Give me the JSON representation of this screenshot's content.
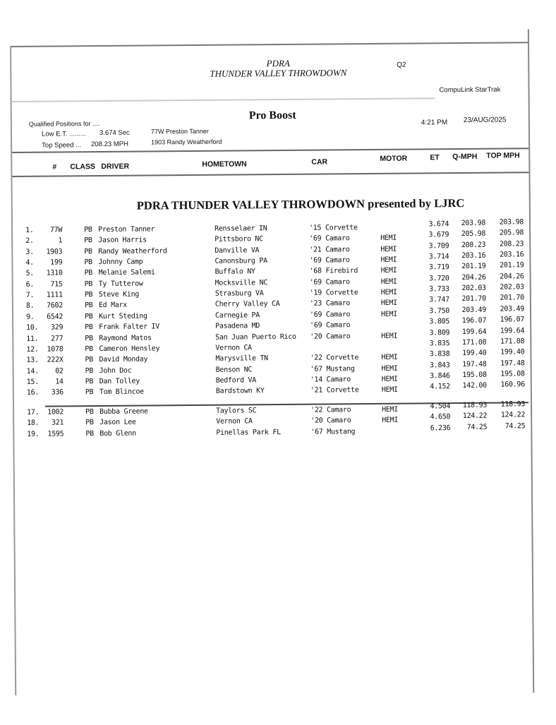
{
  "header": {
    "code": "Q2",
    "org": "PDRA",
    "event": "THUNDER VALLEY THROWDOWN",
    "system": "CompuLink StarTrak",
    "class_title": "Pro Boost",
    "qualified_label": "Qualified Positions for ....",
    "low_et_label": "Low E.T. .........",
    "low_et_value": "3.674 Sec",
    "low_et_holder": "77W  Preston Tanner",
    "top_speed_label": "Top Speed ...",
    "top_speed_value": "208.23 MPH",
    "top_speed_holder": "1903  Randy Weatherford",
    "time": "4:21 PM",
    "date": "23/AUG/2025"
  },
  "columns": [
    "#",
    "CLASS",
    "DRIVER",
    "HOMETOWN",
    "CAR",
    "MOTOR",
    "ET",
    "Q-MPH",
    "TOP MPH"
  ],
  "subtitle": "PDRA THUNDER VALLEY THROWDOWN presented by LJRC",
  "rows": [
    [
      "1.",
      "77W",
      "PB",
      "Preston Tanner",
      "Rensselaer  IN",
      "'15 Corvette",
      "",
      "3.674",
      "203.98",
      "203.98"
    ],
    [
      "2.",
      "1",
      "PB",
      "Jason Harris",
      "Pittsboro  NC",
      "'69 Camaro",
      "HEMI",
      "3.679",
      "205.98",
      "205.98"
    ],
    [
      "3.",
      "1903",
      "PB",
      "Randy Weatherford",
      "Danville  VA",
      "'21 Camaro",
      "HEMI",
      "3.709",
      "208.23",
      "208.23"
    ],
    [
      "4.",
      "199",
      "PB",
      "Johnny Camp",
      "Canonsburg  PA",
      "'69 Camaro",
      "HEMI",
      "3.714",
      "203.16",
      "203.16"
    ],
    [
      "5.",
      "1310",
      "PB",
      "Melanie Salemi",
      "Buffalo  NY",
      "'68 Firebird",
      "HEMI",
      "3.719",
      "201.19",
      "201.19"
    ],
    [
      "6.",
      "715",
      "PB",
      "Ty Tutterow",
      "Mocksville  NC",
      "'69 Camaro",
      "HEMI",
      "3.720",
      "204.26",
      "204.26"
    ],
    [
      "7.",
      "1111",
      "PB",
      "Steve King",
      "Strasburg  VA",
      "'19 Corvette",
      "HEMI",
      "3.733",
      "202.03",
      "202.03"
    ],
    [
      "8.",
      "7602",
      "PB",
      "Ed Marx",
      "Cherry Valley  CA",
      "'23 Camaro",
      "HEMI",
      "3.747",
      "201.70",
      "201.70"
    ],
    [
      "9.",
      "6542",
      "PB",
      "Kurt Steding",
      "Carnegie  PA",
      "'69 Camaro",
      "HEMI",
      "3.750",
      "203.49",
      "203.49"
    ],
    [
      "10.",
      "329",
      "PB",
      "Frank Falter IV",
      "Pasadena  MD",
      "'69 Camaro",
      "",
      "3.805",
      "196.07",
      "196.07"
    ],
    [
      "11.",
      "277",
      "PB",
      "Raymond Matos",
      "San Juan Puerto Rico",
      "'20 Camaro",
      "HEMI",
      "3.809",
      "199.64",
      "199.64"
    ],
    [
      "12.",
      "1078",
      "PB",
      "Cameron Hensley",
      "Vernon  CA",
      "",
      "",
      "3.835",
      "171.08",
      "171.08"
    ],
    [
      "13.",
      "222X",
      "PB",
      "David Monday",
      "Marysville  TN",
      "'22 Corvette",
      "HEMI",
      "3.838",
      "199.40",
      "199.40"
    ],
    [
      "14.",
      "02",
      "PB",
      "John Doc",
      "Benson  NC",
      "'67 Mustang",
      "HEMI",
      "3.843",
      "197.48",
      "197.48"
    ],
    [
      "15.",
      "14",
      "PB",
      "Dan Tolley",
      "Bedford  VA",
      "'14 Camaro",
      "HEMI",
      "3.846",
      "195.08",
      "195.08"
    ],
    [
      "16.",
      "336",
      "PB",
      "Tom Blincoe",
      "Bardstown  KY",
      "'21 Corvette",
      "HEMI",
      "4.152",
      "142.00",
      "160.96"
    ]
  ],
  "rows_alternates": [
    [
      "17.",
      "1002",
      "PB",
      "Bubba Greene",
      "Taylors  SC",
      "'22 Camaro",
      "HEMI",
      "4.504",
      "118.93",
      "118.93"
    ],
    [
      "18.",
      "321",
      "PB",
      "Jason Lee",
      "Vernon  CA",
      "'20 Camaro",
      "HEMI",
      "4.650",
      "124.22",
      "124.22"
    ],
    [
      "19.",
      "1595",
      "PB",
      "Bob Glenn",
      "Pinellas Park  FL",
      "'67 Mustang",
      "",
      "6.236",
      "74.25",
      "74.25"
    ]
  ]
}
